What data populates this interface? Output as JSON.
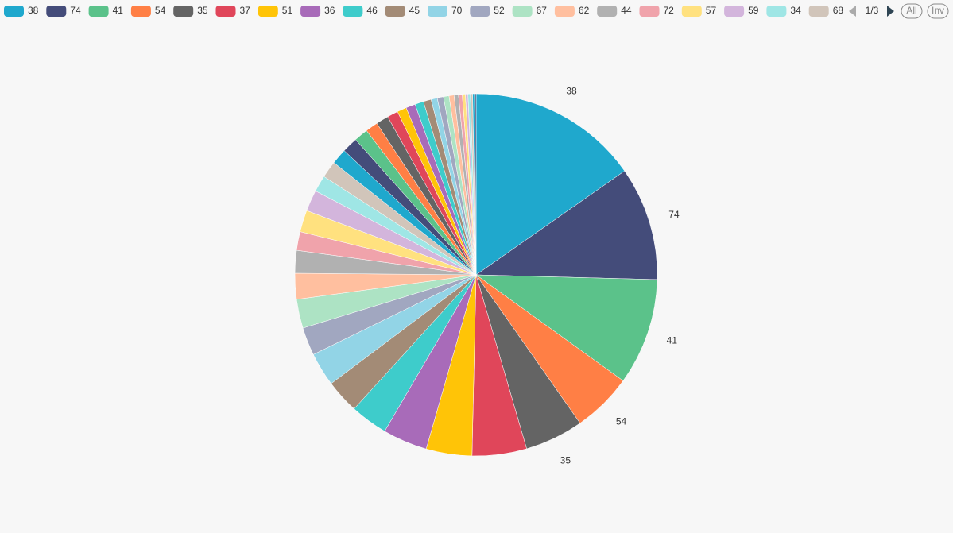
{
  "chart_data": {
    "type": "pie",
    "categories": [
      "38",
      "74",
      "41",
      "54",
      "35",
      "37",
      "51",
      "36",
      "46",
      "45",
      "70",
      "52",
      "67",
      "62",
      "44",
      "72",
      "57",
      "59",
      "34",
      "68",
      null,
      null,
      null,
      null,
      null,
      null,
      null,
      null,
      null,
      null,
      null,
      null,
      null,
      null,
      null,
      null,
      null,
      null,
      null,
      null,
      null,
      null
    ],
    "values": [
      55,
      36.5,
      34.3,
      19.2,
      18.8,
      17.5,
      14.7,
      14.3,
      12,
      10.8,
      10.8,
      9,
      9.3,
      8.3,
      7.3,
      6,
      7,
      6.8,
      5.3,
      5.4,
      5,
      5,
      4.5,
      4,
      4,
      3.5,
      3,
      3,
      2.8,
      2.5,
      2,
      2,
      1.8,
      1.6,
      1.4,
      1.2,
      1,
      0.8,
      0.8,
      0.7,
      0.6,
      0.5
    ],
    "colors": [
      "#1fa8cd",
      "#444c7a",
      "#5bc28a",
      "#ff7f45",
      "#646464",
      "#e0465a",
      "#ffc407",
      "#a86bb9",
      "#3ecccb",
      "#a38b76",
      "#92d4e6",
      "#a1a7c0",
      "#ade3c4",
      "#ffbf9f",
      "#b1b1b1",
      "#f0a3ab",
      "#ffe17f",
      "#d3b5dc",
      "#9fe6e5",
      "#d1c5ba"
    ],
    "legend": {
      "page": "1/3",
      "all": "All",
      "inverse": "Inv"
    }
  }
}
